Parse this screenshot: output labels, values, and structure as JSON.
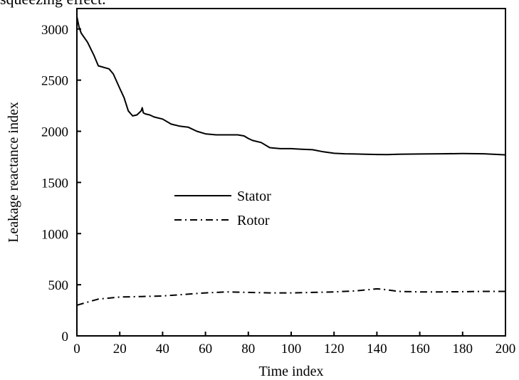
{
  "caption_fragment": "squeezing effect.",
  "chart_data": {
    "type": "line",
    "title": "",
    "xlabel": "Time index",
    "ylabel": "Leakage reactance index",
    "xlim": [
      0,
      200
    ],
    "ylim": [
      0,
      3200
    ],
    "x_ticks": [
      "0",
      "20",
      "40",
      "60",
      "80",
      "100",
      "120",
      "140",
      "160",
      "180",
      "200"
    ],
    "y_ticks": [
      "0",
      "500",
      "1000",
      "1500",
      "2000",
      "2500",
      "3000"
    ],
    "grid": false,
    "legend_position": "center-left",
    "series": [
      {
        "name": "Stator",
        "line_style": "solid",
        "color": "#000000",
        "x": [
          0,
          1,
          2,
          5,
          8,
          10,
          15,
          17,
          20,
          22,
          24,
          26,
          28,
          30,
          30.5,
          31,
          32,
          34,
          36,
          40,
          44,
          48,
          52,
          56,
          60,
          65,
          70,
          75,
          78,
          80,
          82,
          86,
          90,
          95,
          100,
          105,
          110,
          115,
          120,
          125,
          130,
          140,
          145,
          150,
          160,
          170,
          180,
          190,
          200
        ],
        "y": [
          3120,
          3020,
          2960,
          2870,
          2740,
          2640,
          2610,
          2560,
          2420,
          2330,
          2200,
          2150,
          2160,
          2200,
          2230,
          2180,
          2170,
          2160,
          2140,
          2120,
          2070,
          2050,
          2040,
          2000,
          1975,
          1965,
          1965,
          1965,
          1955,
          1930,
          1910,
          1890,
          1840,
          1830,
          1830,
          1825,
          1820,
          1800,
          1785,
          1780,
          1778,
          1773,
          1772,
          1775,
          1778,
          1780,
          1782,
          1780,
          1770
        ]
      },
      {
        "name": "Rotor",
        "line_style": "dash-dot",
        "color": "#000000",
        "x": [
          0,
          5,
          10,
          20,
          30,
          40,
          50,
          60,
          70,
          80,
          90,
          100,
          110,
          120,
          130,
          140,
          143,
          150,
          160,
          170,
          180,
          190,
          200
        ],
        "y": [
          300,
          330,
          360,
          380,
          385,
          390,
          405,
          420,
          430,
          425,
          420,
          420,
          425,
          430,
          440,
          460,
          455,
          435,
          430,
          430,
          432,
          435,
          435
        ]
      }
    ]
  }
}
